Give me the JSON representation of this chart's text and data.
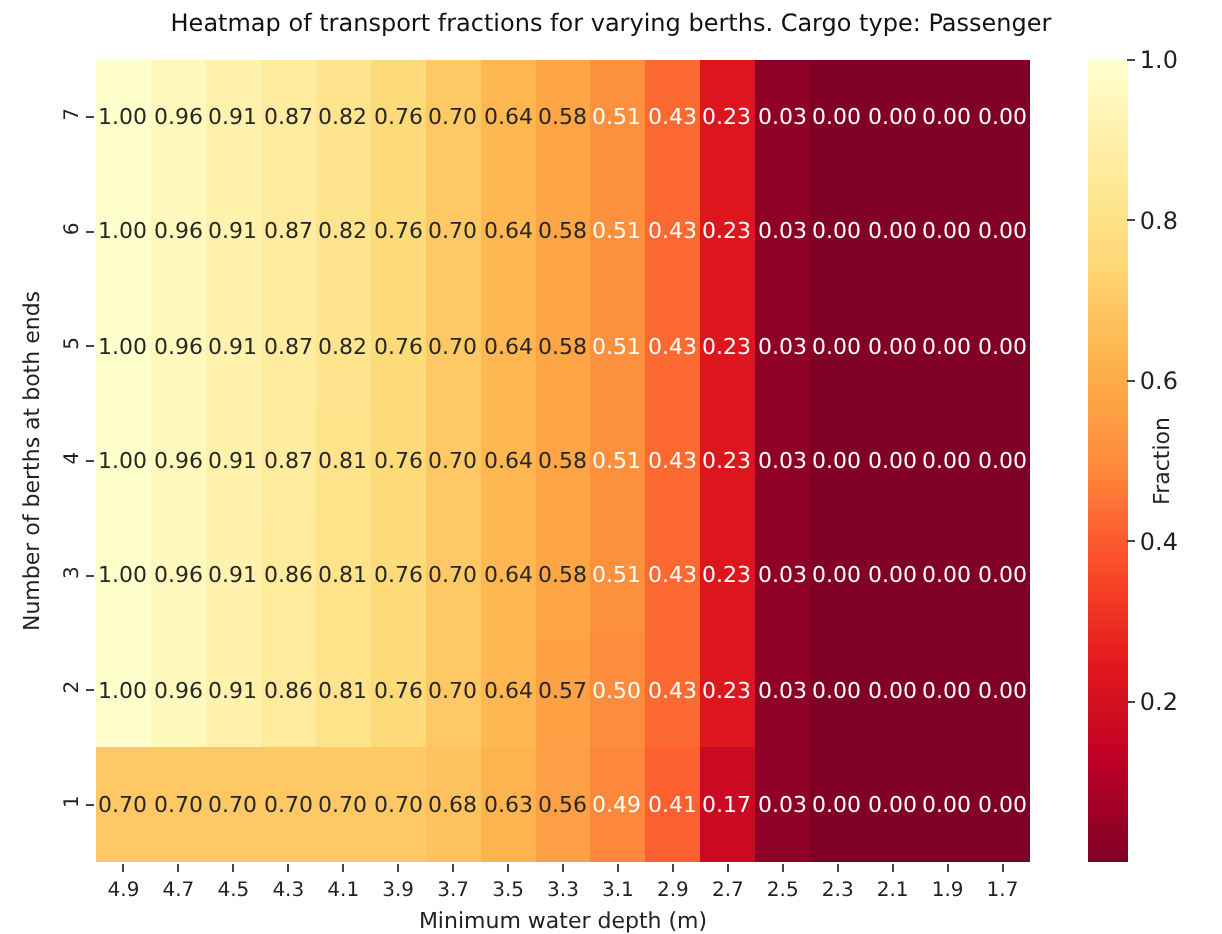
{
  "chart_data": {
    "type": "heatmap",
    "title": "Heatmap of transport fractions for varying berths. Cargo type: Passenger",
    "xlabel": "Minimum water depth (m)",
    "ylabel": "Number of berths at both ends",
    "clabel": "Fraction",
    "categories": [
      "4.9",
      "4.7",
      "4.5",
      "4.3",
      "4.1",
      "3.9",
      "3.7",
      "3.5",
      "3.3",
      "3.1",
      "2.9",
      "2.7",
      "2.5",
      "2.3",
      "2.1",
      "1.9",
      "1.7"
    ],
    "y_categories": [
      "7",
      "6",
      "5",
      "4",
      "3",
      "2",
      "1"
    ],
    "cells": [
      [
        1.0,
        0.96,
        0.91,
        0.87,
        0.82,
        0.76,
        0.7,
        0.64,
        0.58,
        0.51,
        0.43,
        0.23,
        0.03,
        0.0,
        0.0,
        0.0,
        0.0
      ],
      [
        1.0,
        0.96,
        0.91,
        0.87,
        0.82,
        0.76,
        0.7,
        0.64,
        0.58,
        0.51,
        0.43,
        0.23,
        0.03,
        0.0,
        0.0,
        0.0,
        0.0
      ],
      [
        1.0,
        0.96,
        0.91,
        0.87,
        0.82,
        0.76,
        0.7,
        0.64,
        0.58,
        0.51,
        0.43,
        0.23,
        0.03,
        0.0,
        0.0,
        0.0,
        0.0
      ],
      [
        1.0,
        0.96,
        0.91,
        0.87,
        0.81,
        0.76,
        0.7,
        0.64,
        0.58,
        0.51,
        0.43,
        0.23,
        0.03,
        0.0,
        0.0,
        0.0,
        0.0
      ],
      [
        1.0,
        0.96,
        0.91,
        0.86,
        0.81,
        0.76,
        0.7,
        0.64,
        0.58,
        0.51,
        0.43,
        0.23,
        0.03,
        0.0,
        0.0,
        0.0,
        0.0
      ],
      [
        1.0,
        0.96,
        0.91,
        0.86,
        0.81,
        0.76,
        0.7,
        0.64,
        0.57,
        0.5,
        0.43,
        0.23,
        0.03,
        0.0,
        0.0,
        0.0,
        0.0
      ],
      [
        0.7,
        0.7,
        0.7,
        0.7,
        0.7,
        0.7,
        0.68,
        0.63,
        0.56,
        0.49,
        0.41,
        0.17,
        0.03,
        0.0,
        0.0,
        0.0,
        0.0
      ]
    ],
    "cell_labels": [
      [
        "1.00",
        "0.96",
        "0.91",
        "0.87",
        "0.82",
        "0.76",
        "0.70",
        "0.64",
        "0.58",
        "0.51",
        "0.43",
        "0.23",
        "0.03",
        "0.00",
        "0.00",
        "0.00",
        "0.00"
      ],
      [
        "1.00",
        "0.96",
        "0.91",
        "0.87",
        "0.82",
        "0.76",
        "0.70",
        "0.64",
        "0.58",
        "0.51",
        "0.43",
        "0.23",
        "0.03",
        "0.00",
        "0.00",
        "0.00",
        "0.00"
      ],
      [
        "1.00",
        "0.96",
        "0.91",
        "0.87",
        "0.82",
        "0.76",
        "0.70",
        "0.64",
        "0.58",
        "0.51",
        "0.43",
        "0.23",
        "0.03",
        "0.00",
        "0.00",
        "0.00",
        "0.00"
      ],
      [
        "1.00",
        "0.96",
        "0.91",
        "0.87",
        "0.81",
        "0.76",
        "0.70",
        "0.64",
        "0.58",
        "0.51",
        "0.43",
        "0.23",
        "0.03",
        "0.00",
        "0.00",
        "0.00",
        "0.00"
      ],
      [
        "1.00",
        "0.96",
        "0.91",
        "0.86",
        "0.81",
        "0.76",
        "0.70",
        "0.64",
        "0.58",
        "0.51",
        "0.43",
        "0.23",
        "0.03",
        "0.00",
        "0.00",
        "0.00",
        "0.00"
      ],
      [
        "1.00",
        "0.96",
        "0.91",
        "0.86",
        "0.81",
        "0.76",
        "0.70",
        "0.64",
        "0.57",
        "0.50",
        "0.43",
        "0.23",
        "0.03",
        "0.00",
        "0.00",
        "0.00",
        "0.00"
      ],
      [
        "0.70",
        "0.70",
        "0.70",
        "0.70",
        "0.70",
        "0.70",
        "0.68",
        "0.63",
        "0.56",
        "0.49",
        "0.41",
        "0.17",
        "0.03",
        "0.00",
        "0.00",
        "0.00",
        "0.00"
      ]
    ],
    "data_labels": true,
    "clim": [
      0,
      1
    ],
    "cticks": [
      {
        "value": 0.2,
        "label": "0.2"
      },
      {
        "value": 0.4,
        "label": "0.4"
      },
      {
        "value": 0.6,
        "label": "0.6"
      },
      {
        "value": 0.8,
        "label": "0.8"
      },
      {
        "value": 1,
        "label": "1.0"
      }
    ]
  }
}
